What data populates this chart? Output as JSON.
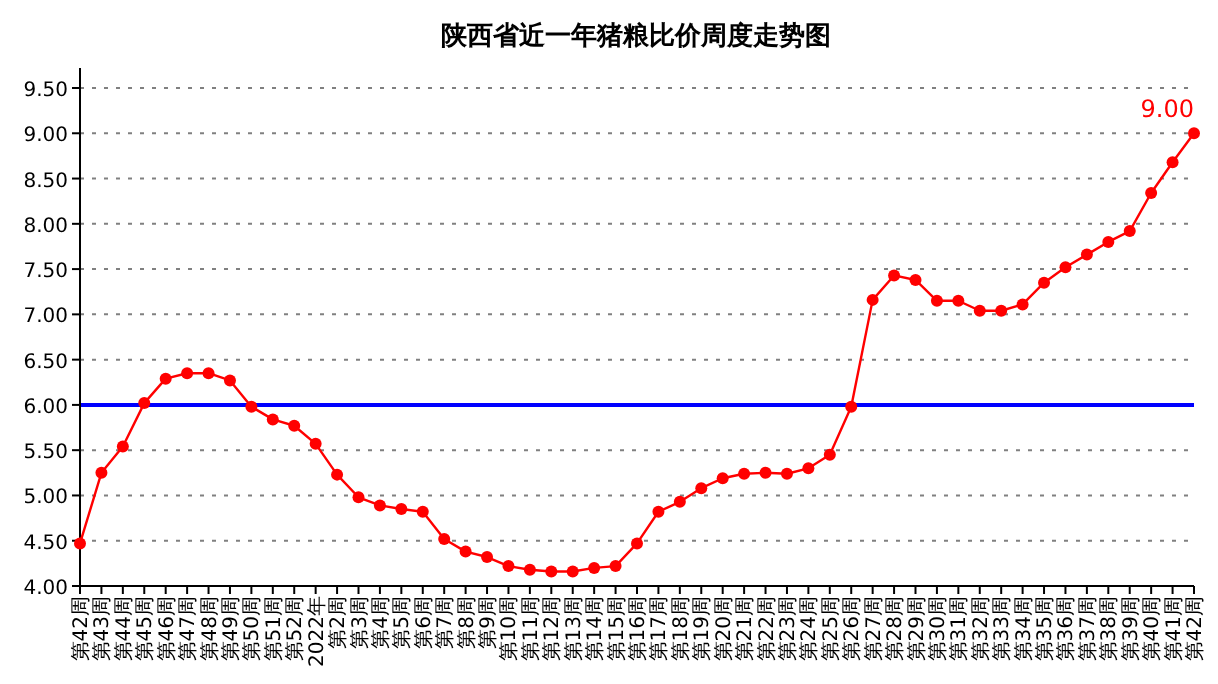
{
  "chart_data": {
    "type": "line",
    "title": "陕西省近一年猪粮比价周度走势图",
    "categories": [
      "第42周",
      "第43周",
      "第44周",
      "第45周",
      "第46周",
      "第47周",
      "第48周",
      "第49周",
      "第50周",
      "第51周",
      "第52周",
      "2022年",
      "第2周",
      "第3周",
      "第4周",
      "第5周",
      "第6周",
      "第7周",
      "第8周",
      "第9周",
      "第10周",
      "第11周",
      "第12周",
      "第13周",
      "第14周",
      "第15周",
      "第16周",
      "第17周",
      "第18周",
      "第19周",
      "第20周",
      "第21周",
      "第22周",
      "第23周",
      "第24周",
      "第25周",
      "第26周",
      "第27周",
      "第28周",
      "第29周",
      "第30周",
      "第31周",
      "第32周",
      "第33周",
      "第34周",
      "第35周",
      "第36周",
      "第37周",
      "第38周",
      "第39周",
      "第40周",
      "第41周",
      "第42周"
    ],
    "series": [
      {
        "color": "#ff0000",
        "values": [
          4.47,
          5.25,
          5.54,
          6.02,
          6.29,
          6.35,
          6.35,
          6.27,
          5.98,
          5.84,
          5.77,
          5.57,
          5.23,
          4.98,
          4.89,
          4.85,
          4.82,
          4.52,
          4.38,
          4.32,
          4.22,
          4.18,
          4.16,
          4.16,
          4.2,
          4.22,
          4.47,
          4.82,
          4.93,
          5.08,
          5.19,
          5.24,
          5.25,
          5.24,
          5.3,
          5.45,
          5.98,
          7.16,
          7.43,
          7.38,
          7.15,
          7.15,
          7.04,
          7.04,
          7.11,
          7.35,
          7.52,
          7.66,
          7.8,
          7.92,
          8.34,
          8.68,
          9.0
        ],
        "value_labels": [
          null,
          null,
          null,
          null,
          null,
          null,
          null,
          null,
          null,
          null,
          null,
          null,
          null,
          null,
          null,
          null,
          null,
          null,
          null,
          null,
          null,
          null,
          null,
          null,
          null,
          null,
          null,
          null,
          null,
          null,
          null,
          null,
          null,
          null,
          null,
          null,
          null,
          null,
          null,
          null,
          null,
          null,
          null,
          null,
          null,
          null,
          null,
          null,
          null,
          null,
          null,
          null,
          "9.00"
        ]
      }
    ],
    "ylim": [
      4,
      9.5
    ],
    "yticks": [
      {
        "value": 4,
        "label": "4.00"
      },
      {
        "value": 4.5,
        "label": "4.50"
      },
      {
        "value": 5,
        "label": "5.00"
      },
      {
        "value": 5.5,
        "label": "5.50"
      },
      {
        "value": 6,
        "label": "6.00"
      },
      {
        "value": 6.5,
        "label": "6.50"
      },
      {
        "value": 7,
        "label": "7.00"
      },
      {
        "value": 7.5,
        "label": "7.50"
      },
      {
        "value": 8,
        "label": "8.00"
      },
      {
        "value": 8.5,
        "label": "8.50"
      },
      {
        "value": 9,
        "label": "9.00"
      },
      {
        "value": 9.5,
        "label": "9.50"
      }
    ],
    "ref_lines": [
      {
        "axis": "y",
        "value": 6,
        "color": "#0000ff"
      }
    ],
    "grid": "y",
    "marker": "circle",
    "line_style": "solid"
  }
}
